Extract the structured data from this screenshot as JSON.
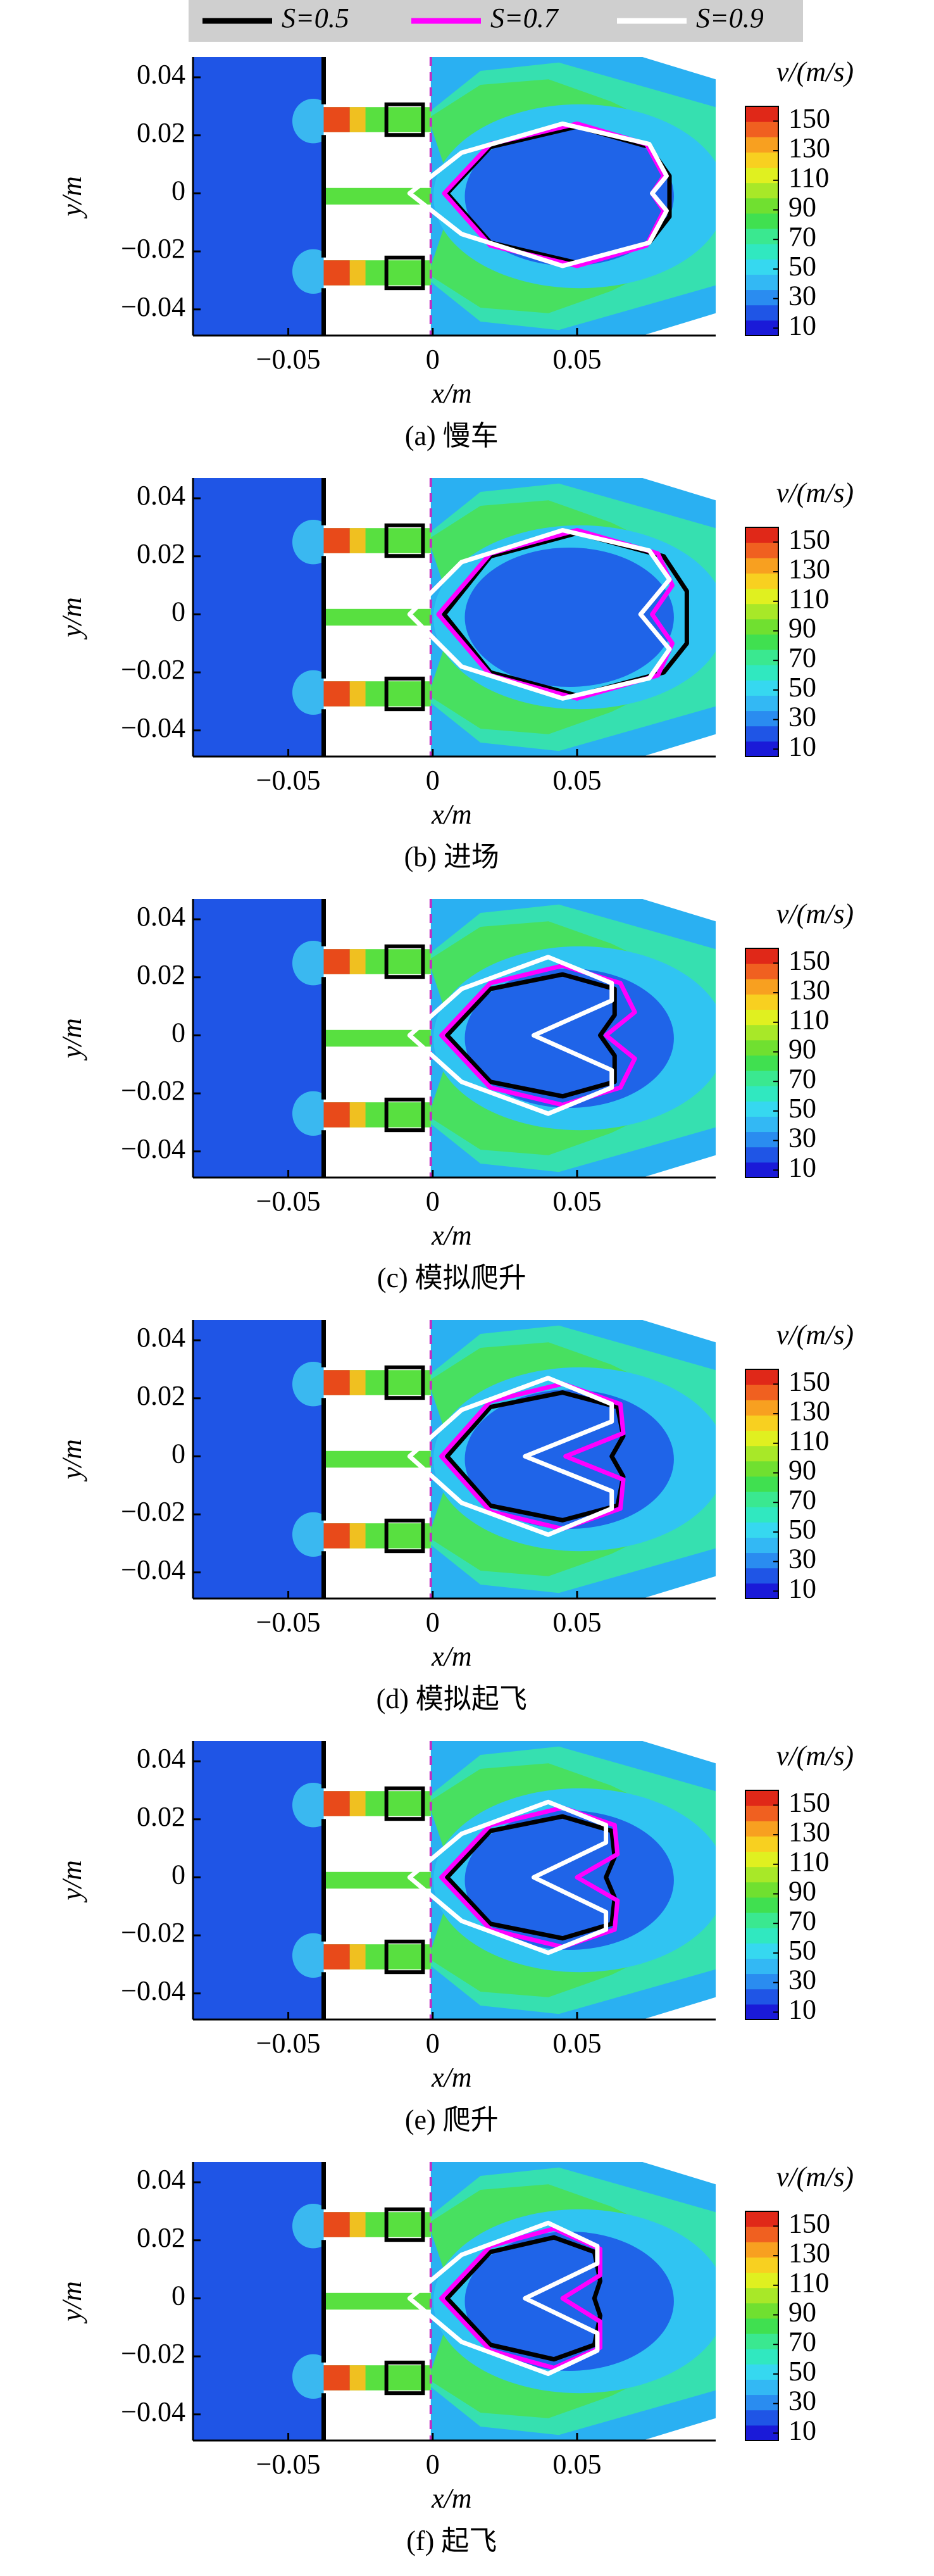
{
  "chart_data": [
    {
      "type": "contour",
      "title": "(a) 慢车",
      "xlabel": "x/m",
      "ylabel": "y/m",
      "xlim": [
        -0.083,
        0.098
      ],
      "ylim": [
        -0.049,
        0.047
      ],
      "xticks": [
        {
          "value": -0.05,
          "label": "−0.05"
        },
        0,
        0.05
      ],
      "yticks": [
        0.04,
        0.02,
        0,
        {
          "value": -0.02,
          "label": "−0.02"
        },
        {
          "value": -0.04,
          "label": "−0.04"
        }
      ],
      "colorbar": {
        "title": "v/(m/s)",
        "lim": [
          5,
          160
        ],
        "ticks": [
          10,
          30,
          50,
          70,
          90,
          110,
          130,
          150
        ],
        "colors": [
          "#1a1ad8",
          "#1f55e6",
          "#2a8cf0",
          "#33b8f4",
          "#36d8f0",
          "#30e8c0",
          "#3ae890",
          "#40e050",
          "#70e030",
          "#a8e828",
          "#e0f020",
          "#f8d020",
          "#f8a020",
          "#f06020",
          "#e02818"
        ]
      },
      "series": [
        {
          "name": "S=0.5",
          "color": "#000000",
          "x": [
            0.005,
            0.02,
            0.05,
            0.075,
            0.082,
            0.082,
            0.075,
            0.05,
            0.02
          ],
          "y": [
            0,
            0.016,
            0.023,
            0.016,
            0.006,
            -0.008,
            -0.017,
            -0.024,
            -0.017
          ]
        },
        {
          "name": "S=0.7",
          "color": "#ff00ff",
          "x": [
            0.004,
            0.02,
            0.05,
            0.074,
            0.08,
            0.076,
            0.08,
            0.074,
            0.05,
            0.02
          ],
          "y": [
            0,
            0.017,
            0.024,
            0.017,
            0.006,
            0,
            -0.006,
            -0.018,
            -0.025,
            -0.018
          ]
        },
        {
          "name": "S=0.9",
          "color": "#ffffff",
          "x": [
            -0.008,
            0.01,
            0.045,
            0.075,
            0.081,
            0.076,
            0.081,
            0.075,
            0.045,
            0.01
          ],
          "y": [
            0,
            0.014,
            0.024,
            0.017,
            0.006,
            0,
            -0.006,
            -0.017,
            -0.025,
            -0.014
          ]
        }
      ]
    },
    {
      "type": "contour",
      "title": "(b) 进场",
      "xlabel": "x/m",
      "ylabel": "y/m",
      "xlim": [
        -0.083,
        0.098
      ],
      "ylim": [
        -0.049,
        0.047
      ],
      "xticks": [
        {
          "value": -0.05,
          "label": "−0.05"
        },
        0,
        0.05
      ],
      "yticks": [
        0.04,
        0.02,
        0,
        {
          "value": -0.02,
          "label": "−0.02"
        },
        {
          "value": -0.04,
          "label": "−0.04"
        }
      ],
      "colorbar": {
        "title": "v/(m/s)",
        "lim": [
          5,
          160
        ],
        "ticks": [
          10,
          30,
          50,
          70,
          90,
          110,
          130,
          150
        ],
        "colors": [
          "#1a1ad8",
          "#1f55e6",
          "#2a8cf0",
          "#33b8f4",
          "#36d8f0",
          "#30e8c0",
          "#3ae890",
          "#40e050",
          "#70e030",
          "#a8e828",
          "#e0f020",
          "#f8d020",
          "#f8a020",
          "#f06020",
          "#e02818"
        ]
      },
      "series": [
        {
          "color": "#000000",
          "x": [
            0.004,
            0.02,
            0.05,
            0.08,
            0.088,
            0.088,
            0.08,
            0.05,
            0.02
          ],
          "y": [
            0,
            0.02,
            0.028,
            0.02,
            0.008,
            -0.01,
            -0.02,
            -0.028,
            -0.02
          ]
        },
        {
          "color": "#ff00ff",
          "x": [
            0.002,
            0.02,
            0.05,
            0.078,
            0.083,
            0.076,
            0.083,
            0.078,
            0.05,
            0.02
          ],
          "y": [
            0,
            0.021,
            0.029,
            0.021,
            0.01,
            0,
            -0.01,
            -0.021,
            -0.029,
            -0.021
          ]
        },
        {
          "color": "#ffffff",
          "x": [
            -0.008,
            0.01,
            0.045,
            0.075,
            0.082,
            0.072,
            0.082,
            0.075,
            0.045,
            0.01
          ],
          "y": [
            0,
            0.018,
            0.029,
            0.022,
            0.012,
            0,
            -0.012,
            -0.022,
            -0.029,
            -0.018
          ]
        }
      ]
    },
    {
      "type": "contour",
      "title": "(c) 模拟爬升",
      "xlabel": "x/m",
      "ylabel": "y/m",
      "xlim": [
        -0.083,
        0.098
      ],
      "ylim": [
        -0.049,
        0.047
      ],
      "xticks": [
        {
          "value": -0.05,
          "label": "−0.05"
        },
        0,
        0.05
      ],
      "yticks": [
        0.04,
        0.02,
        0,
        {
          "value": -0.02,
          "label": "−0.02"
        },
        {
          "value": -0.04,
          "label": "−0.04"
        }
      ],
      "colorbar": {
        "title": "v/(m/s)",
        "lim": [
          5,
          160
        ],
        "ticks": [
          10,
          30,
          50,
          70,
          90,
          110,
          130,
          150
        ],
        "colors": [
          "#1a1ad8",
          "#1f55e6",
          "#2a8cf0",
          "#33b8f4",
          "#36d8f0",
          "#30e8c0",
          "#3ae890",
          "#40e050",
          "#70e030",
          "#a8e828",
          "#e0f020",
          "#f8d020",
          "#f8a020",
          "#f06020",
          "#e02818"
        ]
      },
      "series": [
        {
          "color": "#000000",
          "x": [
            0.005,
            0.02,
            0.045,
            0.063,
            0.063,
            0.058,
            0.063,
            0.063,
            0.045,
            0.02
          ],
          "y": [
            0,
            0.016,
            0.021,
            0.016,
            0.007,
            0,
            -0.007,
            -0.016,
            -0.021,
            -0.016
          ]
        },
        {
          "color": "#ff00ff",
          "x": [
            0.003,
            0.02,
            0.045,
            0.065,
            0.07,
            0.06,
            0.07,
            0.065,
            0.045,
            0.02
          ],
          "y": [
            0,
            0.018,
            0.024,
            0.018,
            0.008,
            0,
            -0.008,
            -0.018,
            -0.024,
            -0.018
          ]
        },
        {
          "color": "#ffffff",
          "x": [
            -0.008,
            0.01,
            0.04,
            0.062,
            0.062,
            0.035,
            0.062,
            0.062,
            0.04,
            0.01
          ],
          "y": [
            0,
            0.016,
            0.027,
            0.018,
            0.012,
            0,
            -0.012,
            -0.018,
            -0.027,
            -0.016
          ]
        }
      ]
    },
    {
      "type": "contour",
      "title": "(d) 模拟起飞",
      "xlabel": "x/m",
      "ylabel": "y/m",
      "xlim": [
        -0.083,
        0.098
      ],
      "ylim": [
        -0.049,
        0.047
      ],
      "xticks": [
        {
          "value": -0.05,
          "label": "−0.05"
        },
        0,
        0.05
      ],
      "yticks": [
        0.04,
        0.02,
        0,
        {
          "value": -0.02,
          "label": "−0.02"
        },
        {
          "value": -0.04,
          "label": "−0.04"
        }
      ],
      "colorbar": {
        "title": "v/(m/s)",
        "lim": [
          5,
          160
        ],
        "ticks": [
          10,
          30,
          50,
          70,
          90,
          110,
          130,
          150
        ],
        "colors": [
          "#1a1ad8",
          "#1f55e6",
          "#2a8cf0",
          "#33b8f4",
          "#36d8f0",
          "#30e8c0",
          "#3ae890",
          "#40e050",
          "#70e030",
          "#a8e828",
          "#e0f020",
          "#f8d020",
          "#f8a020",
          "#f06020",
          "#e02818"
        ]
      },
      "series": [
        {
          "color": "#000000",
          "x": [
            0.005,
            0.02,
            0.045,
            0.064,
            0.066,
            0.062,
            0.066,
            0.064,
            0.045,
            0.02
          ],
          "y": [
            0,
            0.017,
            0.022,
            0.017,
            0.007,
            0,
            -0.007,
            -0.017,
            -0.022,
            -0.017
          ]
        },
        {
          "color": "#ff00ff",
          "x": [
            0.003,
            0.02,
            0.045,
            0.065,
            0.066,
            0.046,
            0.066,
            0.065,
            0.045,
            0.02
          ],
          "y": [
            0,
            0.019,
            0.025,
            0.018,
            0.008,
            0,
            -0.008,
            -0.018,
            -0.025,
            -0.019
          ]
        },
        {
          "color": "#ffffff",
          "x": [
            -0.008,
            0.01,
            0.04,
            0.062,
            0.062,
            0.032,
            0.062,
            0.062,
            0.04,
            0.01
          ],
          "y": [
            0,
            0.016,
            0.027,
            0.018,
            0.012,
            0,
            -0.012,
            -0.018,
            -0.027,
            -0.016
          ]
        }
      ]
    },
    {
      "type": "contour",
      "title": "(e) 爬升",
      "xlabel": "x/m",
      "ylabel": "y/m",
      "xlim": [
        -0.083,
        0.098
      ],
      "ylim": [
        -0.049,
        0.047
      ],
      "xticks": [
        {
          "value": -0.05,
          "label": "−0.05"
        },
        0,
        0.05
      ],
      "yticks": [
        0.04,
        0.02,
        0,
        {
          "value": -0.02,
          "label": "−0.02"
        },
        {
          "value": -0.04,
          "label": "−0.04"
        }
      ],
      "colorbar": {
        "title": "v/(m/s)",
        "lim": [
          5,
          160
        ],
        "ticks": [
          10,
          30,
          50,
          70,
          90,
          110,
          130,
          150
        ],
        "colors": [
          "#1a1ad8",
          "#1f55e6",
          "#2a8cf0",
          "#33b8f4",
          "#36d8f0",
          "#30e8c0",
          "#3ae890",
          "#40e050",
          "#70e030",
          "#a8e828",
          "#e0f020",
          "#f8d020",
          "#f8a020",
          "#f06020",
          "#e02818"
        ]
      },
      "series": [
        {
          "color": "#000000",
          "x": [
            0.005,
            0.02,
            0.045,
            0.062,
            0.063,
            0.06,
            0.063,
            0.062,
            0.045,
            0.02
          ],
          "y": [
            0,
            0.016,
            0.021,
            0.016,
            0.007,
            0,
            -0.007,
            -0.016,
            -0.021,
            -0.016
          ]
        },
        {
          "color": "#ff00ff",
          "x": [
            0.003,
            0.02,
            0.045,
            0.063,
            0.064,
            0.05,
            0.064,
            0.063,
            0.045,
            0.02
          ],
          "y": [
            0,
            0.018,
            0.024,
            0.018,
            0.008,
            0,
            -0.008,
            -0.018,
            -0.024,
            -0.018
          ]
        },
        {
          "color": "#ffffff",
          "x": [
            -0.008,
            0.01,
            0.04,
            0.06,
            0.06,
            0.035,
            0.06,
            0.06,
            0.04,
            0.01
          ],
          "y": [
            0,
            0.015,
            0.026,
            0.018,
            0.012,
            0,
            -0.012,
            -0.018,
            -0.026,
            -0.015
          ]
        }
      ]
    },
    {
      "type": "contour",
      "title": "(f) 起飞",
      "xlabel": "x/m",
      "ylabel": "y/m",
      "xlim": [
        -0.083,
        0.098
      ],
      "ylim": [
        -0.049,
        0.047
      ],
      "xticks": [
        {
          "value": -0.05,
          "label": "−0.05"
        },
        0,
        0.05
      ],
      "yticks": [
        0.04,
        0.02,
        0,
        {
          "value": -0.02,
          "label": "−0.02"
        },
        {
          "value": -0.04,
          "label": "−0.04"
        }
      ],
      "colorbar": {
        "title": "v/(m/s)",
        "lim": [
          5,
          160
        ],
        "ticks": [
          10,
          30,
          50,
          70,
          90,
          110,
          130,
          150
        ],
        "colors": [
          "#1a1ad8",
          "#1f55e6",
          "#2a8cf0",
          "#33b8f4",
          "#36d8f0",
          "#30e8c0",
          "#3ae890",
          "#40e050",
          "#70e030",
          "#a8e828",
          "#e0f020",
          "#f8d020",
          "#f8a020",
          "#f06020",
          "#e02818"
        ]
      },
      "series": [
        {
          "color": "#000000",
          "x": [
            0.005,
            0.02,
            0.042,
            0.056,
            0.058,
            0.056,
            0.058,
            0.056,
            0.042,
            0.02
          ],
          "y": [
            0,
            0.016,
            0.021,
            0.016,
            0.006,
            0,
            -0.006,
            -0.016,
            -0.021,
            -0.016
          ]
        },
        {
          "color": "#ff00ff",
          "x": [
            0.003,
            0.02,
            0.042,
            0.058,
            0.058,
            0.045,
            0.058,
            0.058,
            0.042,
            0.02
          ],
          "y": [
            0,
            0.018,
            0.024,
            0.017,
            0.008,
            0,
            -0.008,
            -0.017,
            -0.024,
            -0.018
          ]
        },
        {
          "color": "#ffffff",
          "x": [
            -0.008,
            0.01,
            0.04,
            0.057,
            0.057,
            0.032,
            0.057,
            0.057,
            0.04,
            0.01
          ],
          "y": [
            0,
            0.015,
            0.026,
            0.018,
            0.012,
            0,
            -0.012,
            -0.018,
            -0.026,
            -0.015
          ]
        }
      ]
    }
  ]
}
